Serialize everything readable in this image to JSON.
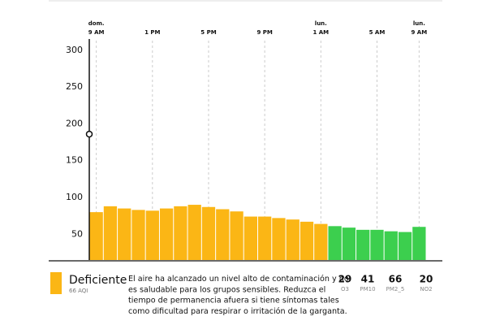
{
  "chart_data": {
    "type": "bar",
    "values": [
      80,
      88,
      85,
      83,
      82,
      85,
      88,
      90,
      87,
      84,
      81,
      74,
      74,
      72,
      70,
      67,
      64,
      61,
      59,
      56,
      56,
      54,
      53,
      60
    ],
    "bar_colors": [
      "#fbb615",
      "#fbb615",
      "#fbb615",
      "#fbb615",
      "#fbb615",
      "#fbb615",
      "#fbb615",
      "#fbb615",
      "#fbb615",
      "#fbb615",
      "#fbb615",
      "#fbb615",
      "#fbb615",
      "#fbb615",
      "#fbb615",
      "#fbb615",
      "#fbb615",
      "#3ccf4e",
      "#3ccf4e",
      "#3ccf4e",
      "#3ccf4e",
      "#3ccf4e",
      "#3ccf4e",
      "#3ccf4e"
    ],
    "xlim": [
      -0.5,
      23.5
    ],
    "xticks": [
      {
        "value": 0,
        "label": "9 AM"
      },
      {
        "value": 4,
        "label": "1 PM"
      },
      {
        "value": 8,
        "label": "5 PM"
      },
      {
        "value": 12,
        "label": "9 PM"
      },
      {
        "value": 16,
        "label": "1 AM"
      },
      {
        "value": 20,
        "label": "5 AM"
      },
      {
        "value": 23,
        "label": "9 AM"
      }
    ],
    "xtick_days": [
      "dom.",
      null,
      null,
      null,
      "lun.",
      null,
      "lun."
    ],
    "ylim": [
      15,
      313
    ],
    "yticks": [
      50,
      100,
      150,
      200,
      250,
      300
    ],
    "cursor": {
      "x": -0.5,
      "value": 186
    },
    "grid": true
  },
  "summary": {
    "category": "Deficiente",
    "aqi_label": "66 AQI",
    "color": "#fbb615",
    "description": [
      "El aire ha alcanzado un nivel alto de contaminación y no",
      "es saludable para los grupos sensibles. Reduzca el",
      "tiempo de permanencia afuera si tiene síntomas tales",
      "como dificultad para respirar o irritación de la garganta."
    ],
    "pollutants": [
      {
        "value": 29,
        "name": "O3"
      },
      {
        "value": 41,
        "name": "PM10"
      },
      {
        "value": 66,
        "name": "PM2_5"
      },
      {
        "value": 20,
        "name": "NO2"
      }
    ]
  }
}
